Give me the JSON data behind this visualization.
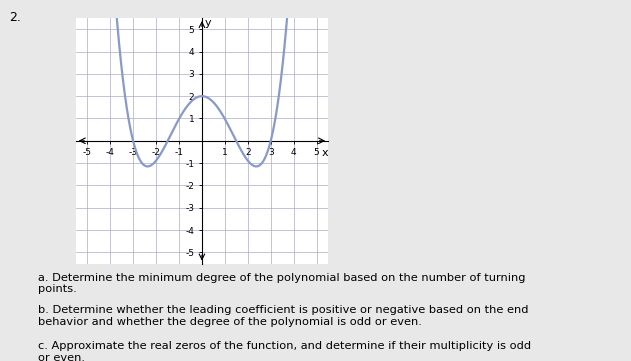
{
  "title_label": "2.",
  "xlim": [
    -5.5,
    5.5
  ],
  "ylim": [
    -5.5,
    5.5
  ],
  "xticks": [
    -5,
    -4,
    -3,
    -2,
    -1,
    1,
    2,
    3,
    4,
    5
  ],
  "yticks": [
    -5,
    -4,
    -3,
    -2,
    -1,
    1,
    2,
    3,
    4,
    5
  ],
  "curve_color": "#8899cc",
  "curve_linewidth": 1.6,
  "background_color": "#e8e8e8",
  "plot_bg_color": "#ffffff",
  "text_color": "#000000",
  "grid_color": "#aaaacc",
  "label_a": "a. Determine the minimum degree of the polynomial based on the number of turning\npoints.",
  "label_b": "b. Determine whether the leading coefficient is positive or negative based on the end\nbehavior and whether the degree of the polynomial is odd or even.",
  "label_c": "c. Approximate the real zeros of the function, and determine if their multiplicity is odd\nor even."
}
